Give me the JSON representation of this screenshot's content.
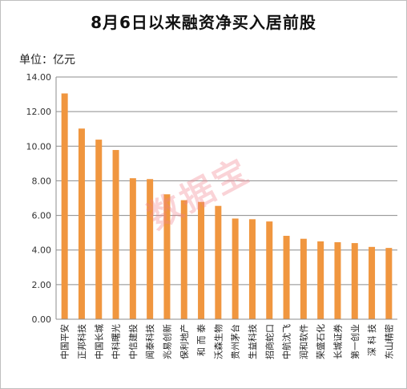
{
  "chart_data": {
    "type": "bar",
    "title": "8月6日以来融资净买入居前股",
    "unit_label": "单位：亿元",
    "watermark": "数据宝",
    "categories": [
      "中国平安",
      "正邦科技",
      "中国长城",
      "中科曙光",
      "中信建投",
      "闻泰科技",
      "兆易创新",
      "保利地产",
      "和 而 泰",
      "沃森生物",
      "贵州茅台",
      "生益科技",
      "招商蛇口",
      "中航沈飞",
      "润和软件",
      "荣盛石化",
      "长城证券",
      "第一创业",
      "深 科 技",
      "东山精密"
    ],
    "values": [
      13.05,
      11.02,
      10.38,
      9.78,
      8.15,
      8.1,
      7.22,
      6.88,
      6.78,
      6.55,
      5.82,
      5.78,
      5.65,
      4.82,
      4.65,
      4.5,
      4.45,
      4.4,
      4.18,
      4.12
    ],
    "ylim": [
      0,
      14
    ],
    "yticks": [
      "0.00",
      "2.00",
      "4.00",
      "6.00",
      "8.00",
      "10.00",
      "12.00",
      "14.00"
    ],
    "bar_color": "#f0963f",
    "grid": true
  }
}
